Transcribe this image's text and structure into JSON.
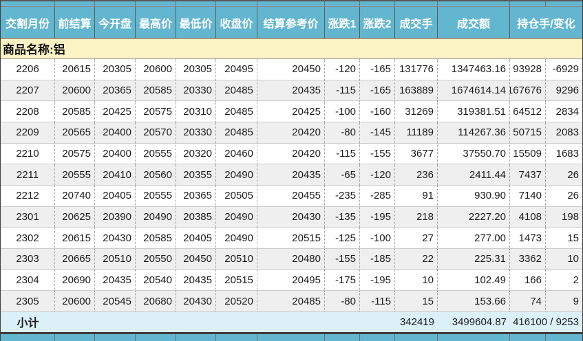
{
  "table": {
    "columns": [
      "交割月份",
      "前结算",
      "今开盘",
      "最高价",
      "最低价",
      "收盘价",
      "结算参考价",
      "涨跌1",
      "涨跌2",
      "成交手",
      "成交额",
      "持仓手/变化"
    ],
    "product_label": "商品名称:铝",
    "rows": [
      [
        "2206",
        "20615",
        "20305",
        "20600",
        "20305",
        "20495",
        "20450",
        "-120",
        "-165",
        "131776",
        "1347463.16",
        "93928",
        "-6929"
      ],
      [
        "2207",
        "20600",
        "20365",
        "20585",
        "20330",
        "20485",
        "20435",
        "-115",
        "-165",
        "163889",
        "1674614.14",
        "167676",
        "9296"
      ],
      [
        "2208",
        "20585",
        "20425",
        "20575",
        "20310",
        "20485",
        "20425",
        "-100",
        "-160",
        "31269",
        "319381.51",
        "64512",
        "2834"
      ],
      [
        "2209",
        "20565",
        "20400",
        "20570",
        "20330",
        "20485",
        "20420",
        "-80",
        "-145",
        "11189",
        "114267.36",
        "50715",
        "2083"
      ],
      [
        "2210",
        "20575",
        "20400",
        "20555",
        "20320",
        "20460",
        "20420",
        "-115",
        "-155",
        "3677",
        "37550.70",
        "15509",
        "1683"
      ],
      [
        "2211",
        "20555",
        "20410",
        "20560",
        "20355",
        "20490",
        "20435",
        "-65",
        "-120",
        "236",
        "2411.44",
        "7437",
        "26"
      ],
      [
        "2212",
        "20740",
        "20405",
        "20555",
        "20365",
        "20505",
        "20455",
        "-235",
        "-285",
        "91",
        "930.90",
        "7140",
        "26"
      ],
      [
        "2301",
        "20625",
        "20390",
        "20490",
        "20385",
        "20490",
        "20430",
        "-135",
        "-195",
        "218",
        "2227.20",
        "4108",
        "198"
      ],
      [
        "2302",
        "20615",
        "20430",
        "20585",
        "20405",
        "20490",
        "20515",
        "-125",
        "-100",
        "27",
        "277.00",
        "1473",
        "15"
      ],
      [
        "2303",
        "20665",
        "20510",
        "20550",
        "20450",
        "20510",
        "20480",
        "-155",
        "-185",
        "22",
        "225.31",
        "3362",
        "10"
      ],
      [
        "2304",
        "20690",
        "20435",
        "20540",
        "20435",
        "20515",
        "20495",
        "-175",
        "-195",
        "10",
        "102.49",
        "166",
        "2"
      ],
      [
        "2305",
        "20600",
        "20545",
        "20680",
        "20430",
        "20520",
        "20485",
        "-80",
        "-115",
        "15",
        "153.66",
        "74",
        "9"
      ]
    ],
    "subtotal": {
      "label": "小计",
      "volume": "342419",
      "turnover": "3499604.87",
      "open_interest": "416100 / 9253"
    }
  },
  "colors": {
    "header_bg": "#63B6CF",
    "product_row_bg": "#FBF3C3",
    "alt_row_bg": "#EFEFEF",
    "subtotal_bg": "#DCF0F8",
    "dark_border": "#3c3c3c"
  }
}
